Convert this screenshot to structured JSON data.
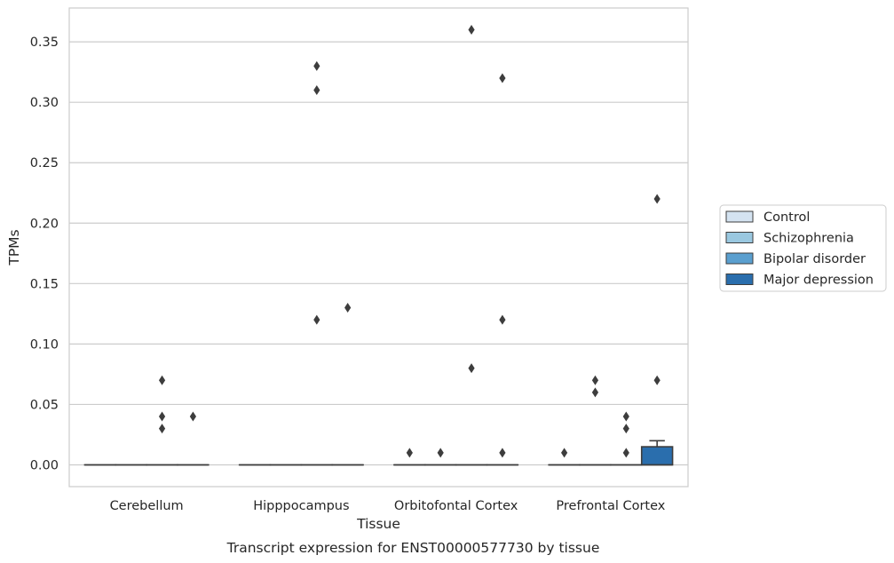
{
  "caption": "Transcript expression for ENST00000577730 by tissue",
  "chart_data": {
    "type": "box",
    "xlabel": "Tissue",
    "ylabel": "TPMs",
    "ylim": [
      -0.018,
      0.378
    ],
    "yticks": [
      0.0,
      0.05,
      0.1,
      0.15,
      0.2,
      0.25,
      0.3,
      0.35
    ],
    "ytick_labels": [
      "0.00",
      "0.05",
      "0.10",
      "0.15",
      "0.20",
      "0.25",
      "0.30",
      "0.35"
    ],
    "grid": "horizontal",
    "legend_position": "right",
    "categories": [
      "Cerebellum",
      "Hipppocampus",
      "Orbitofontal Cortex",
      "Prefrontal Cortex"
    ],
    "series": [
      {
        "name": "Control",
        "color": "#d4e3f1",
        "boxes": [
          {
            "q1": 0,
            "median": 0,
            "q3": 0,
            "whisker_low": 0,
            "whisker_high": 0,
            "outliers": []
          },
          {
            "q1": 0,
            "median": 0,
            "q3": 0,
            "whisker_low": 0,
            "whisker_high": 0,
            "outliers": []
          },
          {
            "q1": 0,
            "median": 0,
            "q3": 0,
            "whisker_low": 0,
            "whisker_high": 0,
            "outliers": [
              0.01
            ]
          },
          {
            "q1": 0,
            "median": 0,
            "q3": 0,
            "whisker_low": 0,
            "whisker_high": 0,
            "outliers": [
              0.01
            ]
          }
        ]
      },
      {
        "name": "Schizophrenia",
        "color": "#9ac8e0",
        "boxes": [
          {
            "q1": 0,
            "median": 0,
            "q3": 0,
            "whisker_low": 0,
            "whisker_high": 0,
            "outliers": []
          },
          {
            "q1": 0,
            "median": 0,
            "q3": 0,
            "whisker_low": 0,
            "whisker_high": 0,
            "outliers": []
          },
          {
            "q1": 0,
            "median": 0,
            "q3": 0,
            "whisker_low": 0,
            "whisker_high": 0,
            "outliers": [
              0.01
            ]
          },
          {
            "q1": 0,
            "median": 0,
            "q3": 0,
            "whisker_low": 0,
            "whisker_high": 0,
            "outliers": [
              0.07,
              0.06
            ]
          }
        ]
      },
      {
        "name": "Bipolar disorder",
        "color": "#5a9fcf",
        "boxes": [
          {
            "q1": 0,
            "median": 0,
            "q3": 0,
            "whisker_low": 0,
            "whisker_high": 0,
            "outliers": [
              0.07,
              0.04,
              0.03
            ]
          },
          {
            "q1": 0,
            "median": 0,
            "q3": 0,
            "whisker_low": 0,
            "whisker_high": 0,
            "outliers": [
              0.33,
              0.31,
              0.12
            ]
          },
          {
            "q1": 0,
            "median": 0,
            "q3": 0,
            "whisker_low": 0,
            "whisker_high": 0,
            "outliers": [
              0.36,
              0.08
            ]
          },
          {
            "q1": 0,
            "median": 0,
            "q3": 0,
            "whisker_low": 0,
            "whisker_high": 0,
            "outliers": [
              0.04,
              0.03,
              0.01
            ]
          }
        ]
      },
      {
        "name": "Major depression",
        "color": "#2a6ead",
        "boxes": [
          {
            "q1": 0,
            "median": 0,
            "q3": 0,
            "whisker_low": 0,
            "whisker_high": 0,
            "outliers": [
              0.04
            ]
          },
          {
            "q1": 0,
            "median": 0,
            "q3": 0,
            "whisker_low": 0,
            "whisker_high": 0,
            "outliers": [
              0.13
            ]
          },
          {
            "q1": 0,
            "median": 0,
            "q3": 0,
            "whisker_low": 0,
            "whisker_high": 0,
            "outliers": [
              0.32,
              0.12,
              0.01
            ]
          },
          {
            "q1": 0,
            "median": 0,
            "q3": 0.015,
            "whisker_low": 0,
            "whisker_high": 0.02,
            "outliers": [
              0.22,
              0.07
            ]
          }
        ]
      }
    ]
  }
}
